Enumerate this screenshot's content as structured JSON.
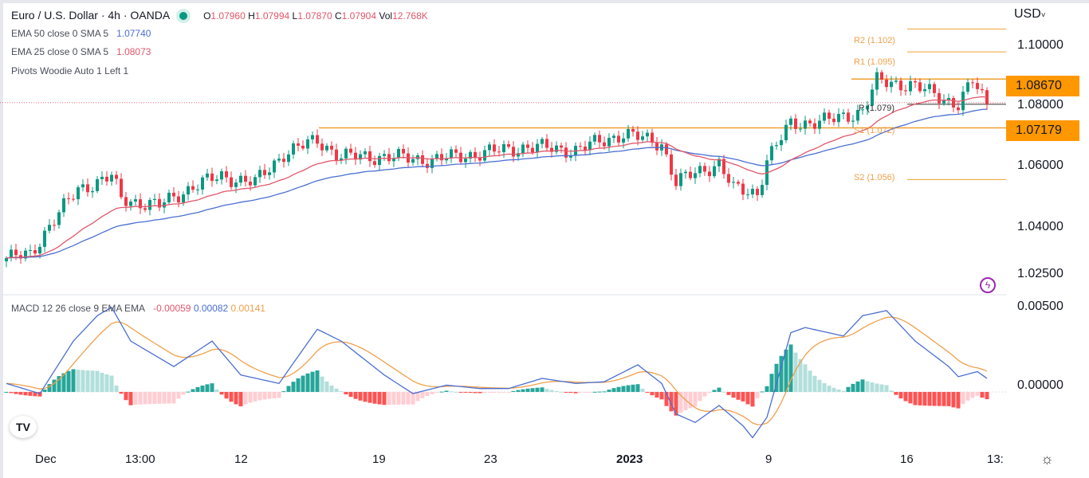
{
  "header": {
    "symbol": "Euro / U.S. Dollar · 4h · OANDA",
    "ohlc": {
      "o_label": "O",
      "o": "1.07960",
      "h_label": "H",
      "h": "1.07994",
      "l_label": "L",
      "l": "1.07870",
      "c_label": "C",
      "c": "1.07904",
      "vol_label": "Vol",
      "vol": "12.768K"
    }
  },
  "indicators": {
    "ema50": {
      "label": "EMA 50 close 0 SMA 5",
      "value": "1.07740",
      "color": "#4a6fd0"
    },
    "ema25": {
      "label": "EMA 25 close 0 SMA 5",
      "value": "1.08073",
      "color": "#e0576a"
    },
    "pivots": {
      "label": "Pivots Woodie Auto 1 Left 1"
    },
    "macd": {
      "label": "MACD 12 26 close 9 EMA EMA",
      "hist": "-0.00059",
      "macd": "0.00082",
      "signal": "0.00141"
    }
  },
  "price_axis": {
    "currency": "USD",
    "ticks": [
      "1.10000",
      "1.08000",
      "1.06000",
      "1.04000",
      "1.02500"
    ],
    "tags": [
      "1.08670",
      "1.07179"
    ],
    "macd_ticks": [
      "0.00500",
      "0.00000"
    ]
  },
  "pivot_labels": {
    "r2": "R2 (1.102)",
    "r1": "R1 (1.095)",
    "p": "P (1.079)",
    "s1": "S1 (1.072)",
    "s2": "S2 (1.056)"
  },
  "time_axis": [
    "Dec",
    "13:00",
    "12",
    "19",
    "23",
    "2023",
    "9",
    "16",
    "13:"
  ],
  "chart_data": {
    "type": "candlestick",
    "bars": 206,
    "close_path": [
      [
        0,
        1.032
      ],
      [
        5,
        1.033
      ],
      [
        9,
        1.042
      ],
      [
        15,
        1.053
      ],
      [
        22,
        1.057
      ],
      [
        24,
        1.05
      ],
      [
        32,
        1.048
      ],
      [
        39,
        1.054
      ],
      [
        45,
        1.057
      ],
      [
        52,
        1.055
      ],
      [
        58,
        1.064
      ],
      [
        65,
        1.068
      ],
      [
        70,
        1.063
      ],
      [
        79,
        1.063
      ],
      [
        89,
        1.062
      ],
      [
        99,
        1.064
      ],
      [
        109,
        1.066
      ],
      [
        119,
        1.065
      ],
      [
        129,
        1.07
      ],
      [
        137,
        1.067
      ],
      [
        140,
        1.055
      ],
      [
        144,
        1.058
      ],
      [
        149,
        1.061
      ],
      [
        152,
        1.053
      ],
      [
        157,
        1.052
      ],
      [
        159,
        1.062
      ],
      [
        164,
        1.073
      ],
      [
        172,
        1.074
      ],
      [
        179,
        1.077
      ],
      [
        182,
        1.086
      ],
      [
        189,
        1.085
      ],
      [
        194,
        1.082
      ],
      [
        199,
        1.079
      ],
      [
        202,
        1.086
      ],
      [
        205,
        1.079
      ]
    ],
    "macd_path": [
      [
        0,
        0.0005
      ],
      [
        7,
        -0.0001
      ],
      [
        14,
        0.003
      ],
      [
        19,
        0.0045
      ],
      [
        22,
        0.005
      ],
      [
        26,
        0.003
      ],
      [
        35,
        0.0015
      ],
      [
        43,
        0.003
      ],
      [
        49,
        0.001
      ],
      [
        57,
        0.0005
      ],
      [
        65,
        0.0037
      ],
      [
        70,
        0.003
      ],
      [
        79,
        0.001
      ],
      [
        85,
        -0.0001
      ],
      [
        92,
        0.0004
      ],
      [
        99,
        0.0002
      ],
      [
        105,
        0.0002
      ],
      [
        112,
        0.0008
      ],
      [
        119,
        0.0005
      ],
      [
        125,
        0.0006
      ],
      [
        132,
        0.0016
      ],
      [
        137,
        0.0005
      ],
      [
        140,
        -0.0013
      ],
      [
        144,
        -0.0018
      ],
      [
        149,
        -0.0008
      ],
      [
        154,
        -0.002
      ],
      [
        156,
        -0.0027
      ],
      [
        159,
        -0.0015
      ],
      [
        164,
        0.0035
      ],
      [
        167,
        0.0038
      ],
      [
        175,
        0.0033
      ],
      [
        179,
        0.0045
      ],
      [
        184,
        0.0048
      ],
      [
        190,
        0.003
      ],
      [
        197,
        0.0015
      ],
      [
        199,
        0.0009
      ],
      [
        203,
        0.0012
      ],
      [
        205,
        0.0008
      ]
    ],
    "pivots": {
      "r2": 1.102,
      "r1": 1.095,
      "p": 1.079,
      "s1": 1.072,
      "s2": 1.056
    },
    "horizontal_levels": [
      1.0867,
      1.07179
    ],
    "ylim": [
      1.022,
      1.106
    ],
    "macd_ylim": [
      -0.0032,
      0.0055
    ],
    "colors": {
      "up": "#089981",
      "down": "#f23645",
      "level": "#f0a030",
      "ema50": "#4a6fd0",
      "ema25": "#e0576a",
      "macd": "#4a6fd0",
      "signal": "#f0a04a"
    }
  }
}
